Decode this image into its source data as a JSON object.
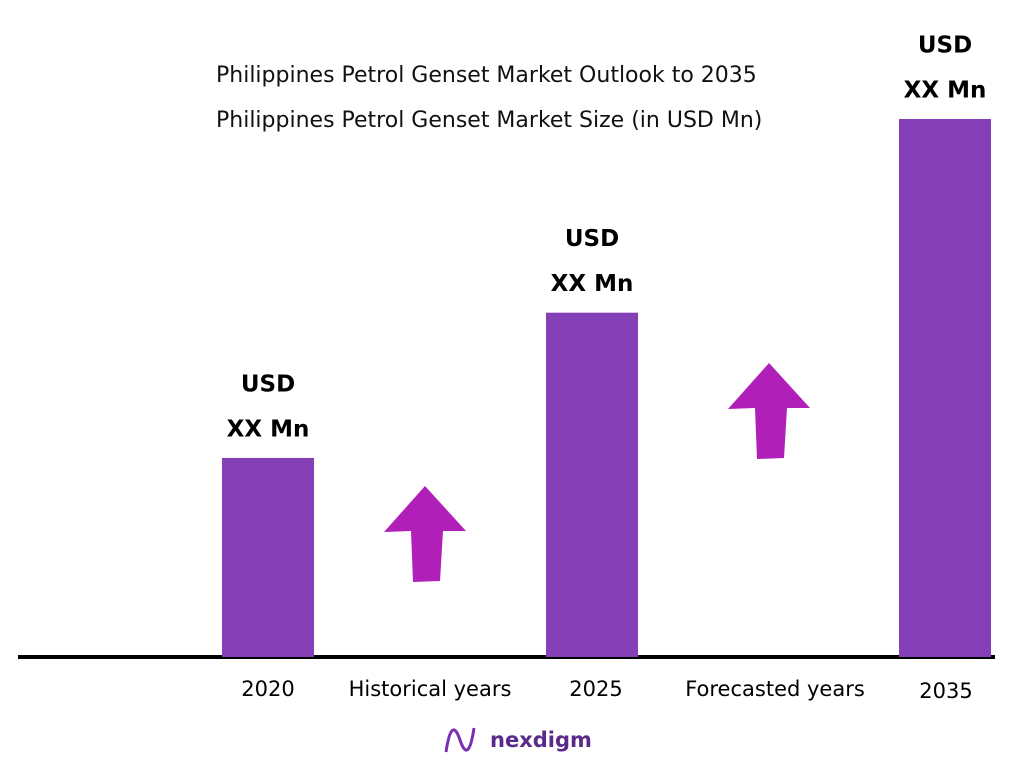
{
  "chart_data": {
    "type": "bar",
    "title": "Philippines Petrol Genset Market Outlook to 2035",
    "subtitle": "Philippines Petrol Genset Market Size (in USD Mn)",
    "categories": [
      "2020",
      "2025",
      "2035"
    ],
    "values": [
      37,
      64,
      100
    ],
    "color": "#8540b8",
    "bar_labels": [
      [
        "USD",
        "XX Mn"
      ],
      [
        "USD",
        "XX Mn"
      ],
      [
        "USD",
        "XX Mn"
      ]
    ],
    "period_labels": [
      "Historical years",
      "Forecasted years"
    ],
    "arrow_color": "#b01fb8",
    "logo": "nexdigm"
  }
}
